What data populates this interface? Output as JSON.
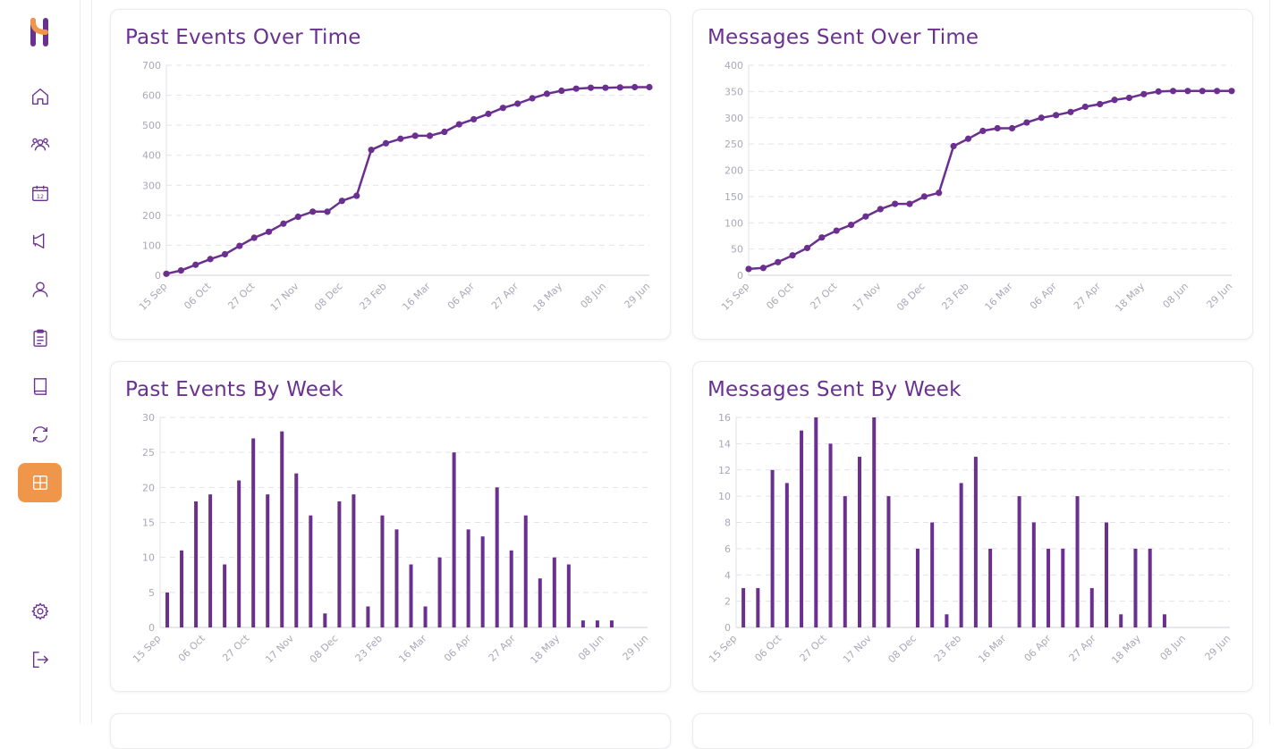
{
  "colors": {
    "accent": "#6a2f8f",
    "active_nav": "#f0964a",
    "grid": "#e2e2ea"
  },
  "sidebar": {
    "items": [
      {
        "name": "home-icon"
      },
      {
        "name": "users-icon"
      },
      {
        "name": "calendar-icon",
        "label": "12"
      },
      {
        "name": "megaphone-icon"
      },
      {
        "name": "user-icon"
      },
      {
        "name": "clipboard-icon"
      },
      {
        "name": "book-icon"
      },
      {
        "name": "refresh-icon"
      },
      {
        "name": "grid-icon",
        "active": true
      }
    ],
    "bottom": [
      {
        "name": "gear-icon"
      },
      {
        "name": "logout-icon"
      }
    ]
  },
  "cards": {
    "past_events_time": {
      "title": "Past Events Over Time"
    },
    "messages_time": {
      "title": "Messages Sent Over Time"
    },
    "past_events_week": {
      "title": "Past Events By Week"
    },
    "messages_week": {
      "title": "Messages Sent By Week"
    }
  },
  "chart_data": [
    {
      "id": "past_events_time",
      "type": "line",
      "title": "Past Events Over Time",
      "x_ticks": [
        "15 Sep",
        "06 Oct",
        "27 Oct",
        "17 Nov",
        "08 Dec",
        "23 Feb",
        "16 Mar",
        "06 Apr",
        "27 Apr",
        "18 May",
        "08 Jun",
        "29 Jun"
      ],
      "ylim": [
        0,
        700
      ],
      "y_ticks": [
        0,
        100,
        200,
        300,
        400,
        500,
        600,
        700
      ],
      "values": [
        5,
        16,
        35,
        54,
        70,
        98,
        125,
        145,
        172,
        195,
        212,
        212,
        248,
        265,
        418,
        440,
        455,
        465,
        465,
        478,
        503,
        520,
        538,
        558,
        572,
        590,
        605,
        615,
        622,
        625,
        625,
        626,
        627,
        627
      ]
    },
    {
      "id": "messages_time",
      "type": "line",
      "title": "Messages Sent Over Time",
      "x_ticks": [
        "15 Sep",
        "06 Oct",
        "27 Oct",
        "17 Nov",
        "08 Dec",
        "23 Feb",
        "16 Mar",
        "06 Apr",
        "27 Apr",
        "18 May",
        "08 Jun",
        "29 Jun"
      ],
      "ylim": [
        0,
        400
      ],
      "y_ticks": [
        0,
        50,
        100,
        150,
        200,
        250,
        300,
        350,
        400
      ],
      "values": [
        12,
        14,
        25,
        38,
        52,
        72,
        85,
        96,
        112,
        126,
        136,
        136,
        150,
        157,
        246,
        260,
        275,
        280,
        280,
        291,
        300,
        305,
        311,
        321,
        326,
        334,
        338,
        345,
        350,
        351,
        351,
        351,
        351,
        351
      ]
    },
    {
      "id": "past_events_week",
      "type": "bar",
      "title": "Past Events By Week",
      "x_ticks": [
        "15 Sep",
        "06 Oct",
        "27 Oct",
        "17 Nov",
        "08 Dec",
        "23 Feb",
        "16 Mar",
        "06 Apr",
        "27 Apr",
        "18 May",
        "08 Jun",
        "29 Jun"
      ],
      "ylim": [
        0,
        30
      ],
      "y_ticks": [
        0,
        5,
        10,
        15,
        20,
        25,
        30
      ],
      "values": [
        5,
        11,
        18,
        19,
        9,
        21,
        27,
        19,
        28,
        22,
        16,
        2,
        18,
        19,
        3,
        16,
        14,
        9,
        3,
        10,
        25,
        14,
        13,
        20,
        11,
        16,
        7,
        10,
        9,
        1,
        1,
        1,
        0,
        0
      ]
    },
    {
      "id": "messages_week",
      "type": "bar",
      "title": "Messages Sent By Week",
      "x_ticks": [
        "15 Sep",
        "06 Oct",
        "27 Oct",
        "17 Nov",
        "08 Dec",
        "23 Feb",
        "16 Mar",
        "06 Apr",
        "27 Apr",
        "18 May",
        "08 Jun",
        "29 Jun"
      ],
      "ylim": [
        0,
        16
      ],
      "y_ticks": [
        0,
        2,
        4,
        6,
        8,
        10,
        12,
        14,
        16
      ],
      "values": [
        3,
        3,
        12,
        11,
        15,
        16,
        14,
        10,
        13,
        16,
        10,
        0,
        6,
        8,
        1,
        11,
        13,
        6,
        0,
        10,
        8,
        6,
        6,
        10,
        3,
        8,
        1,
        6,
        6,
        1,
        0,
        0,
        0,
        0
      ]
    }
  ]
}
